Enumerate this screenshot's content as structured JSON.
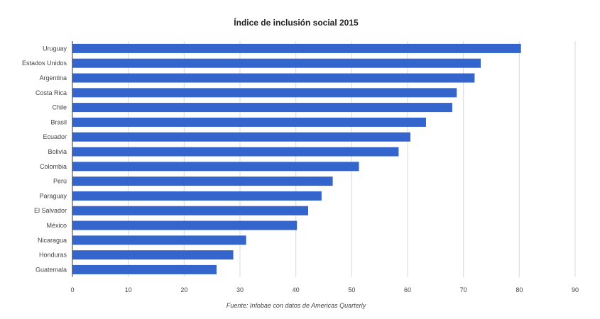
{
  "chart_data": {
    "type": "bar",
    "orientation": "horizontal",
    "title": "Índice de inclusión social 2015",
    "source": "Fuente: Infobae con datos de Americas Quarterly",
    "categories": [
      "Uruguay",
      "Estados Unidos",
      "Argentina",
      "Costa Rica",
      "Chile",
      "Brasil",
      "Ecuador",
      "Bolivia",
      "Colombia",
      "Perú",
      "Paraguay",
      "El Salvador",
      "México",
      "Nicaragua",
      "Honduras",
      "Guatemala"
    ],
    "values": [
      80.3,
      73.1,
      72,
      68.8,
      68,
      63.3,
      60.5,
      58.4,
      51.3,
      46.6,
      44.6,
      42.2,
      40.2,
      31.1,
      28.8,
      25.8
    ],
    "xlim": [
      0,
      90
    ],
    "xticks": [
      0,
      10,
      20,
      30,
      40,
      50,
      60,
      70,
      80,
      90
    ],
    "xlabel": "",
    "ylabel": "",
    "grid": true,
    "legend": "none",
    "bar_color": "#3465cc"
  }
}
